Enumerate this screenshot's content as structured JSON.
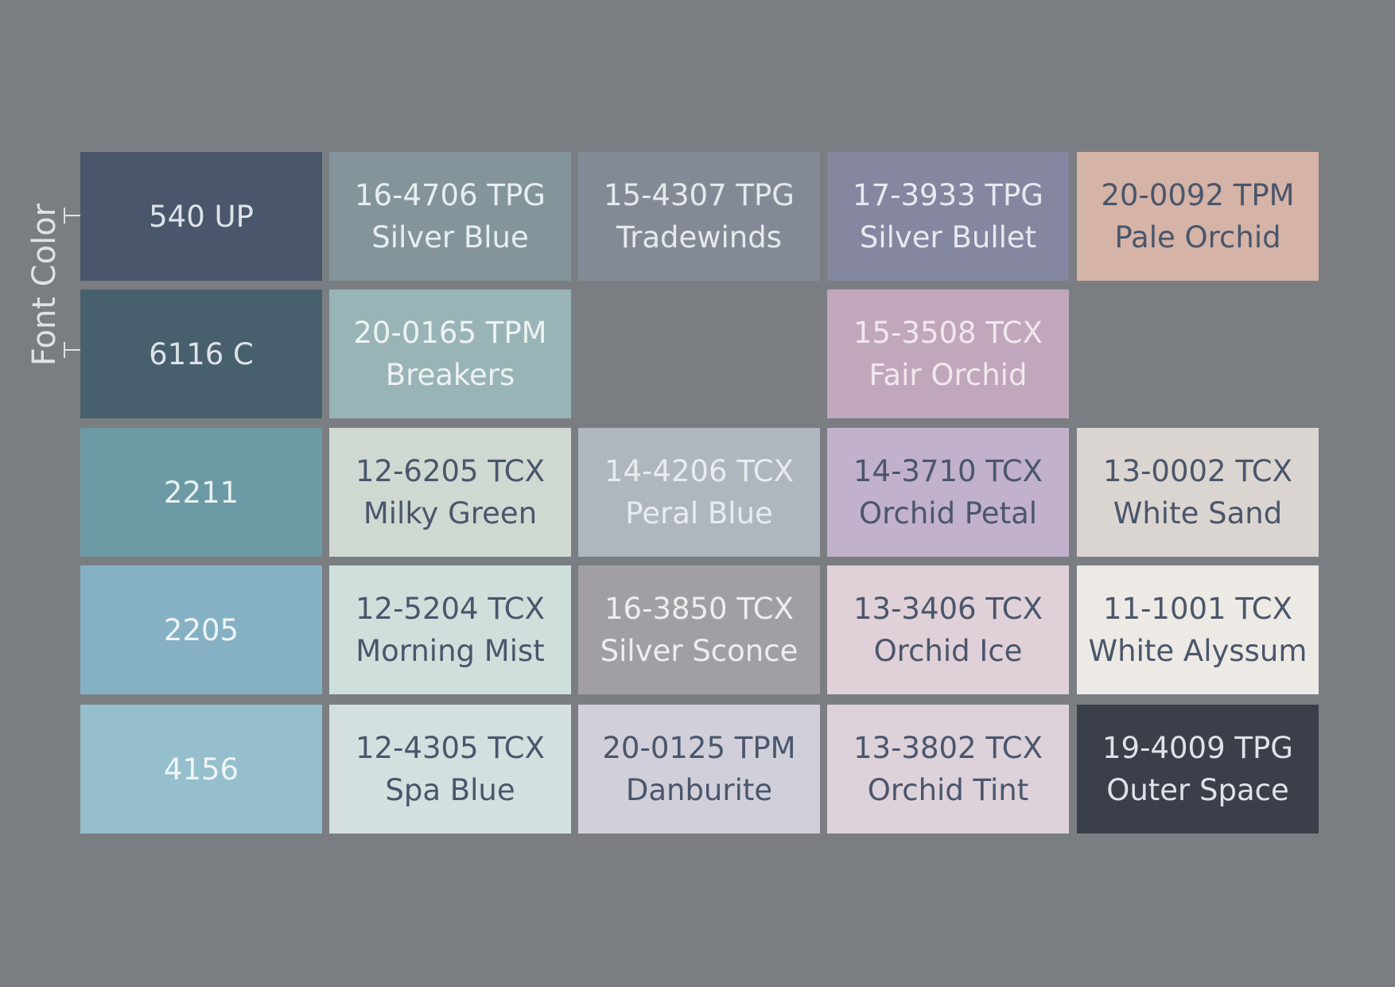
{
  "axis_label": "Font Color",
  "rows": [
    {
      "label": "540 UP",
      "bg": "#4a566b",
      "color": "#dde3e8",
      "cells": [
        {
          "code": "16-4706 TPG",
          "name": "Silver Blue",
          "bg": "#83959b",
          "color": "#e8eef0"
        },
        {
          "code": "15-4307 TPG",
          "name": "Tradewinds",
          "bg": "#848a95",
          "color": "#e6e9ec"
        },
        {
          "code": "17-3933 TPG",
          "name": "Silver Bullet",
          "bg": "#85869f",
          "color": "#e9e9ef"
        },
        {
          "code": "20-0092 TPM",
          "name": "Pale Orchid",
          "bg": "#d5b3a7",
          "color": "#4a566b"
        }
      ]
    },
    {
      "label": "6116 C",
      "bg": "#485f6d",
      "color": "#dde3e8",
      "cells": [
        {
          "code": "20-0165 TPM",
          "name": "Breakers",
          "bg": "#99b4b6",
          "color": "#eef2f2"
        },
        null,
        {
          "code": "15-3508 TCX",
          "name": "Fair Orchid",
          "bg": "#c0a7bb",
          "color": "#f1e8ee"
        },
        null
      ]
    },
    {
      "label": "2211",
      "bg": "#6c9aa4",
      "color": "#e8f0f2",
      "cells": [
        {
          "code": "12-6205 TCX",
          "name": "Milky Green",
          "bg": "#cfd9d2",
          "color": "#4a566b"
        },
        {
          "code": "14-4206 TCX",
          "name": "Peral Blue",
          "bg": "#b0b6be",
          "color": "#e8ecef"
        },
        {
          "code": "14-3710 TCX",
          "name": "Orchid Petal",
          "bg": "#c2b1cb",
          "color": "#4a566b"
        },
        {
          "code": "13-0002 TCX",
          "name": "White Sand",
          "bg": "#dbd5d1",
          "color": "#4a566b"
        }
      ]
    },
    {
      "label": "2205",
      "bg": "#86b1c4",
      "color": "#eef4f6",
      "cells": [
        {
          "code": "12-5204 TCX",
          "name": "Morning Mist",
          "bg": "#cfe0dc",
          "color": "#4a566b"
        },
        {
          "code": "16-3850 TCX",
          "name": "Silver Sconce",
          "bg": "#a19ea4",
          "color": "#eeeeee"
        },
        {
          "code": "13-3406 TCX",
          "name": "Orchid Ice",
          "bg": "#e0d0d8",
          "color": "#4a566b"
        },
        {
          "code": "11-1001 TCX",
          "name": "White Alyssum",
          "bg": "#ede9e4",
          "color": "#4a566b"
        }
      ]
    },
    {
      "label": "4156",
      "bg": "#95bfcc",
      "color": "#eef4f6",
      "cells": [
        {
          "code": "12-4305 TCX",
          "name": "Spa Blue",
          "bg": "#d3e0df",
          "color": "#4a566b"
        },
        {
          "code": "20-0125 TPM",
          "name": "Danburite",
          "bg": "#d1cfda",
          "color": "#4a566b"
        },
        {
          "code": "13-3802 TCX",
          "name": "Orchid Tint",
          "bg": "#ddd1da",
          "color": "#4a566b"
        },
        {
          "code": "19-4009 TPG",
          "name": "Outer Space",
          "bg": "#3b3f4a",
          "color": "#dde3e8"
        }
      ]
    }
  ]
}
